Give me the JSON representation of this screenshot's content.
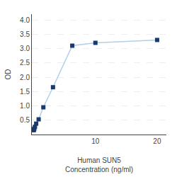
{
  "chart_data": {
    "type": "line",
    "xlabel": "Human SUN5\nConcentration (ng/ml)",
    "ylabel": "OD",
    "x": [
      0,
      0.05,
      0.1,
      0.2,
      0.4,
      0.8,
      1.563,
      3.125,
      6.25,
      10,
      20
    ],
    "values": [
      0.15,
      0.18,
      0.21,
      0.27,
      0.38,
      0.53,
      0.95,
      1.65,
      3.1,
      3.2,
      3.3
    ],
    "color": "#b0cfe8",
    "colors": [
      "#1a3a6b",
      "#1a3a6b",
      "#1a3a6b",
      "#1a3a6b",
      "#1a3a6b",
      "#1a3a6b",
      "#1a3a6b",
      "#1a3a6b",
      "#1a3a6b",
      "#1a3a6b",
      "#1a3a6b"
    ],
    "marker": "square",
    "xlim": [
      -0.3,
      21.5
    ],
    "xticks": [
      10,
      20
    ],
    "ylim": [
      0,
      4.2
    ],
    "yticks": [
      0.5,
      {
        "value": 1.0,
        "label": "1.0"
      },
      1.5,
      {
        "value": 2.0,
        "label": "2.0"
      },
      2.5,
      {
        "value": 3.0,
        "label": "3.0"
      },
      3.5,
      {
        "value": 4.0,
        "label": "4.0"
      }
    ],
    "grid": "y"
  }
}
